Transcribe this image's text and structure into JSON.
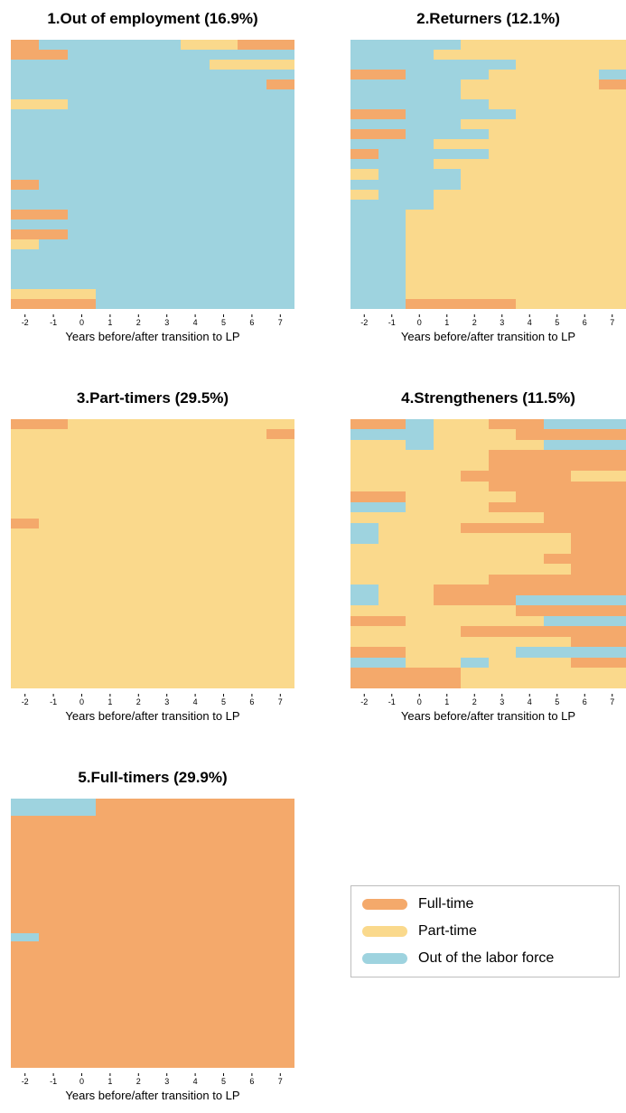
{
  "chart_data": {
    "type": "heatmap",
    "colors": {
      "F": "#F4A96B",
      "P": "#FAD98C",
      "O": "#9ED3DF"
    },
    "legend": [
      {
        "key": "F",
        "label": "Full-time"
      },
      {
        "key": "P",
        "label": "Part-time"
      },
      {
        "key": "O",
        "label": "Out of the labor force"
      }
    ],
    "legend_position": "right of panel 5",
    "x_ticks": [
      "-2",
      "-1",
      "0",
      "1",
      "2",
      "3",
      "4",
      "5",
      "6",
      "7"
    ],
    "xlabel": "Years before/after transition to LP",
    "grid": false,
    "panels": [
      {
        "title": "1.Out of employment (16.9%)",
        "years": [
          -2,
          -1,
          0,
          1,
          2,
          3,
          4,
          5,
          6,
          7
        ],
        "rows": [
          "FOOOOOPPFF",
          "FFOOOOOOOO",
          "OOOOOOOPPP",
          "OOOOOOOOOO",
          "OOOOOOOOOF",
          "OOOOOOOOOO",
          "PPOOOOOOOO",
          "OOOOOOOOOO",
          "OOOOOOOOOO",
          "OOOOOOOOOO",
          "OOOOOOOOOO",
          "OOOOOOOOOO",
          "OOOOOOOOOO",
          "OOOOOOOOOO",
          "FOOOOOOOOO",
          "OOOOOOOOOO",
          "OOOOOOOOOO",
          "FFOOOOOOOO",
          "OOOOOOOOOO",
          "FFOOOOOOOO",
          "POOOOOOOOO",
          "OOOOOOOOOO",
          "OOOOOOOOOO",
          "OOOOOOOOOO",
          "OOOOOOOOOO",
          "PPPOOOOOOO",
          "FFFOOOOOOO"
        ]
      },
      {
        "title": "2.Returners (12.1%)",
        "years": [
          -2,
          -1,
          0,
          1,
          2,
          3,
          4,
          5,
          6,
          7
        ],
        "rows": [
          "OOOOPPPPPP",
          "OOOPPPPPPP",
          "OOOOOOPPPP",
          "FFOOOPPPPO",
          "OOOOPPPPPF",
          "OOOOPPPPPP",
          "OOOOOPPPPP",
          "FFOOOOPPPP",
          "OOOOPPPPPP",
          "FFOOOPPPPP",
          "OOOPPPPPPP",
          "FOOOOPPPPP",
          "OOOPPPPPPP",
          "POOOPPPPPP",
          "OOOOPPPPPP",
          "POOPPPPPPP",
          "OOOPPPPPPP",
          "OOPPPPPPPP",
          "OOPPPPPPPP",
          "OOPPPPPPPP",
          "OOPPPPPPPP",
          "OOPPPPPPPP",
          "OOPPPPPPPP",
          "OOPPPPPPPP",
          "OOPPPPPPPP",
          "OOPPPPPPPP",
          "OOFFFFPPPP"
        ]
      },
      {
        "title": "3.Part-timers (29.5%)",
        "years": [
          -2,
          -1,
          0,
          1,
          2,
          3,
          4,
          5,
          6,
          7
        ],
        "rows": [
          "FFPPPPPPPP",
          "PPPPPPPPPF",
          "PPPPPPPPPP",
          "PPPPPPPPPP",
          "PPPPPPPPPP",
          "PPPPPPPPPP",
          "PPPPPPPPPP",
          "PPPPPPPPPP",
          "PPPPPPPPPP",
          "PPPPPPPPPP",
          "FPPPPPPPPP",
          "PPPPPPPPPP",
          "PPPPPPPPPP",
          "PPPPPPPPPP",
          "PPPPPPPPPP",
          "PPPPPPPPPP",
          "PPPPPPPPPP",
          "PPPPPPPPPP",
          "PPPPPPPPPP",
          "PPPPPPPPPP",
          "PPPPPPPPPP",
          "PPPPPPPPPP",
          "PPPPPPPPPP",
          "PPPPPPPPPP",
          "PPPPPPPPPP",
          "PPPPPPPPPP",
          "PPPPPPPPPP"
        ]
      },
      {
        "title": "4.Strengtheners (11.5%)",
        "years": [
          -2,
          -1,
          0,
          1,
          2,
          3,
          4,
          5,
          6,
          7
        ],
        "rows": [
          "FFOPPFFOOO",
          "OOOPPPFFFF",
          "PPOPPPPOOO",
          "PPPPPFFFFF",
          "PPPPPFFFFF",
          "PPPPFFFFPP",
          "PPPPPFFFFF",
          "FFPPPPFFFF",
          "OOPPPFFFFF",
          "PPPPPPPFFF",
          "OPPPFFFFFF",
          "OPPPPPPPFF",
          "PPPPPPPPFF",
          "PPPPPPPFFF",
          "PPPPPPPPFF",
          "PPPPPFFFFF",
          "OPPFFFFFFF",
          "OPPFFFOOOO",
          "PPPPPPFFFF",
          "FFPPPPPOOO",
          "PPPPFFFFFF",
          "PPPPPPPPFF",
          "FFPPPPOOOO",
          "OOPPOPPPFF",
          "FFFFPPPPPP",
          "FFFFPPPPPP"
        ]
      },
      {
        "title": "5.Full-timers (29.9%)",
        "years": [
          -2,
          -1,
          0,
          1,
          2,
          3,
          4,
          5,
          6,
          7
        ],
        "rows": [
          "OOOFFFFFFF",
          "OOOFFFFFFF",
          "FFFFFFFFFF",
          "FFFFFFFFFF",
          "FFFFFFFFFF",
          "FFFFFFFFFF",
          "FFFFFFFFFF",
          "FFFFFFFFFF",
          "FFFFFFFFFF",
          "FFFFFFFFFF",
          "FFFFFFFFFF",
          "FFFFFFFFFF",
          "FFFFFFFFFF",
          "FFFFFFFFFF",
          "FFFFFFFFFF",
          "FFFFFFFFFF",
          "OFFFFFFFFF",
          "FFFFFFFFFF",
          "FFFFFFFFFF",
          "FFFFFFFFFF",
          "FFFFFFFFFF",
          "FFFFFFFFFF",
          "FFFFFFFFFF",
          "FFFFFFFFFF",
          "FFFFFFFFFF",
          "FFFFFFFFFF",
          "FFFFFFFFFF",
          "FFFFFFFFFF",
          "FFFFFFFFFF",
          "FFFFFFFFFF",
          "FFFFFFFFFF",
          "FFFFFFFFFF"
        ]
      }
    ]
  }
}
